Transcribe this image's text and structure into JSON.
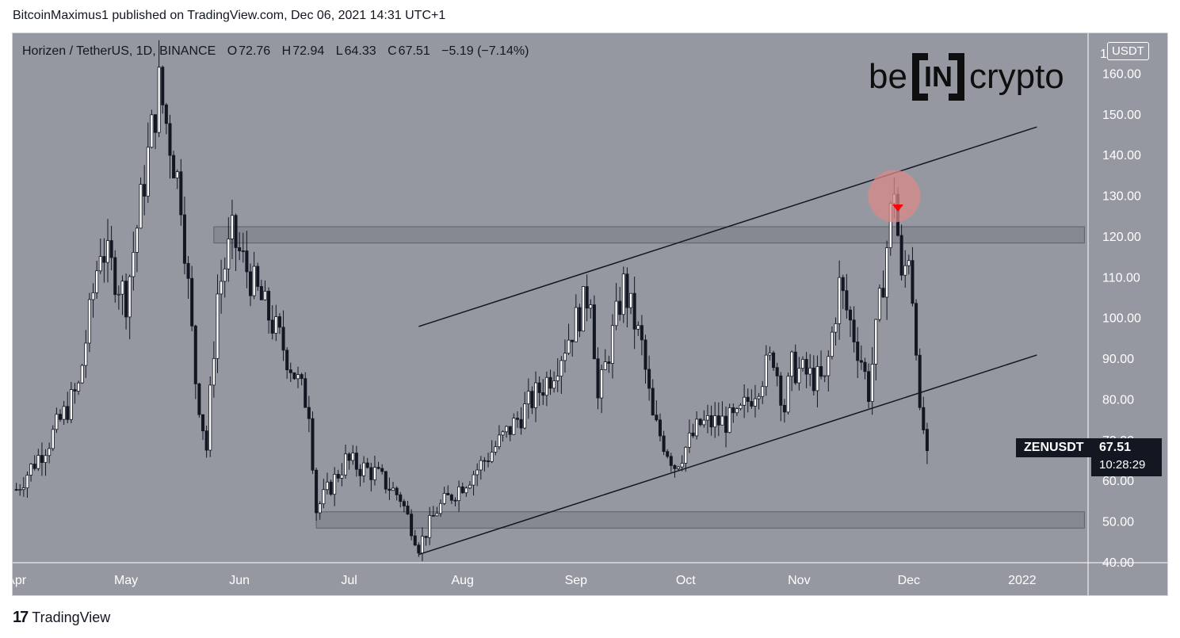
{
  "header": {
    "published": "BitcoinMaximus1 published on TradingView.com, Dec 06, 2021 14:31 UTC+1"
  },
  "symbol": {
    "title": "Horizen / TetherUS, 1D, BINANCE",
    "open_key": "O",
    "open": "72.76",
    "high_key": "H",
    "high": "72.94",
    "low_key": "L",
    "low": "64.33",
    "close_key": "C",
    "close": "67.51",
    "change": "−5.19 (−7.14%)"
  },
  "logo": {
    "left": "be",
    "inner": "IN",
    "right": "crypto"
  },
  "currency": "USDT",
  "price_tag": {
    "symbol": "ZENUSDT",
    "price": "67.51",
    "countdown": "10:28:29"
  },
  "brand": {
    "icon": "17",
    "name": "TradingView"
  },
  "colors": {
    "background": "#9598a1",
    "up_candle": "#ffffff",
    "down_candle": "#131722",
    "zone": "#7b7e87",
    "highlight_circle": "#d98a8a",
    "arrow": "#ff0000"
  },
  "chart_data": {
    "type": "candlestick",
    "symbol": "ZENUSDT",
    "timeframe": "1D",
    "ylim": [
      40,
      170
    ],
    "y_ticks": [
      "160.00",
      "150.00",
      "140.00",
      "130.00",
      "120.00",
      "110.00",
      "100.00",
      "90.00",
      "80.00",
      "70.00",
      "60.00",
      "50.00",
      "40.00"
    ],
    "y_tick_values": [
      160,
      150,
      140,
      130,
      120,
      110,
      100,
      90,
      80,
      70,
      60,
      50,
      40
    ],
    "x_ticks": [
      "Apr",
      "May",
      "Jun",
      "Jul",
      "Aug",
      "Sep",
      "Oct",
      "Nov",
      "Dec",
      "2022"
    ],
    "x_tick_dates": [
      "2021-04-01",
      "2021-05-01",
      "2021-06-01",
      "2021-07-01",
      "2021-08-01",
      "2021-09-01",
      "2021-10-01",
      "2021-11-01",
      "2021-12-01",
      "2022-01-01"
    ],
    "x_range": [
      "2021-03-31",
      "2022-01-19"
    ],
    "top_partial_tick": "1",
    "ohlc_anchors": [
      {
        "date": "2021-04-01",
        "close": 58
      },
      {
        "date": "2021-04-10",
        "close": 70
      },
      {
        "date": "2021-04-18",
        "close": 83
      },
      {
        "date": "2021-04-24",
        "close": 118
      },
      {
        "date": "2021-05-01",
        "close": 105
      },
      {
        "date": "2021-05-07",
        "close": 140
      },
      {
        "date": "2021-05-10",
        "close": 157
      },
      {
        "date": "2021-05-16",
        "close": 130
      },
      {
        "date": "2021-05-20",
        "close": 85
      },
      {
        "date": "2021-05-23",
        "close": 68
      },
      {
        "date": "2021-05-26",
        "close": 106
      },
      {
        "date": "2021-05-30",
        "close": 120
      },
      {
        "date": "2021-06-05",
        "close": 108
      },
      {
        "date": "2021-06-12",
        "close": 95
      },
      {
        "date": "2021-06-20",
        "close": 78
      },
      {
        "date": "2021-06-22",
        "close": 53
      },
      {
        "date": "2021-06-30",
        "close": 65
      },
      {
        "date": "2021-07-08",
        "close": 62
      },
      {
        "date": "2021-07-15",
        "close": 56
      },
      {
        "date": "2021-07-20",
        "close": 44
      },
      {
        "date": "2021-07-25",
        "close": 53
      },
      {
        "date": "2021-08-05",
        "close": 63
      },
      {
        "date": "2021-08-15",
        "close": 74
      },
      {
        "date": "2021-08-25",
        "close": 86
      },
      {
        "date": "2021-09-05",
        "close": 107
      },
      {
        "date": "2021-09-07",
        "close": 80
      },
      {
        "date": "2021-09-14",
        "close": 108
      },
      {
        "date": "2021-09-19",
        "close": 93
      },
      {
        "date": "2021-09-22",
        "close": 75
      },
      {
        "date": "2021-09-28",
        "close": 64
      },
      {
        "date": "2021-10-05",
        "close": 74
      },
      {
        "date": "2021-10-15",
        "close": 75
      },
      {
        "date": "2021-10-25",
        "close": 91
      },
      {
        "date": "2021-10-28",
        "close": 78
      },
      {
        "date": "2021-10-30",
        "close": 88
      },
      {
        "date": "2021-11-08",
        "close": 84
      },
      {
        "date": "2021-11-12",
        "close": 108
      },
      {
        "date": "2021-11-18",
        "close": 90
      },
      {
        "date": "2021-11-20",
        "close": 82
      },
      {
        "date": "2021-11-24",
        "close": 110
      },
      {
        "date": "2021-11-27",
        "close": 133
      },
      {
        "date": "2021-11-29",
        "close": 108
      },
      {
        "date": "2021-12-01",
        "close": 117
      },
      {
        "date": "2021-12-03",
        "close": 95
      },
      {
        "date": "2021-12-04",
        "close": 75
      },
      {
        "date": "2021-12-05",
        "close": 72.76
      },
      {
        "date": "2021-12-06",
        "close": 67.51
      }
    ],
    "lines": [
      {
        "name": "channel-resistance",
        "from": {
          "date": "2021-07-20",
          "price": 98
        },
        "to": {
          "date": "2022-01-05",
          "price": 147
        }
      },
      {
        "name": "channel-support",
        "from": {
          "date": "2021-07-20",
          "price": 42
        },
        "to": {
          "date": "2022-01-05",
          "price": 91
        }
      }
    ],
    "zones": [
      {
        "name": "resistance-zone",
        "from": "2021-05-25",
        "to": "2022-01-18",
        "low": 118.5,
        "high": 122.5
      },
      {
        "name": "support-zone",
        "from": "2021-06-22",
        "to": "2022-01-18",
        "low": 48.5,
        "high": 52.5
      }
    ],
    "annotations": [
      {
        "name": "top-circle",
        "date": "2021-11-27",
        "price": 130
      },
      {
        "name": "bearish-arrow",
        "date": "2021-11-28",
        "price": 127
      }
    ]
  }
}
